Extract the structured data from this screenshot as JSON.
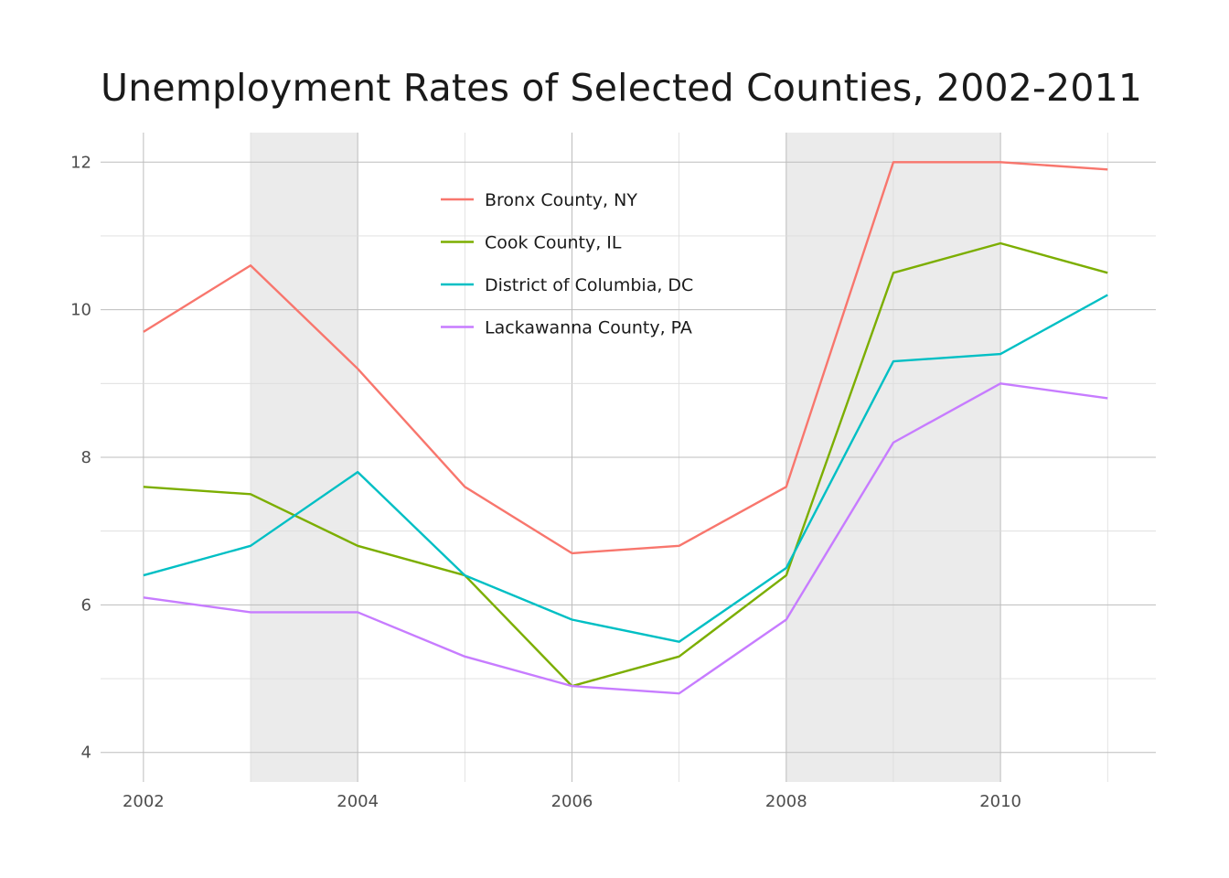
{
  "chart_data": {
    "type": "line",
    "title": "Unemployment Rates of Selected Counties, 2002-2011",
    "xlabel": "",
    "ylabel": "",
    "x": [
      2002,
      2003,
      2004,
      2005,
      2006,
      2007,
      2008,
      2009,
      2010,
      2011
    ],
    "xlim": [
      2001.6,
      2011.45
    ],
    "ylim": [
      3.6,
      12.4
    ],
    "x_ticks": [
      2002,
      2004,
      2006,
      2008,
      2010
    ],
    "y_ticks": [
      4,
      6,
      8,
      10,
      12
    ],
    "grid": true,
    "legend_position": "top-center (inside plot)",
    "shaded_ranges": [
      [
        2003,
        2004
      ],
      [
        2008,
        2010
      ]
    ],
    "shade_color": "#ebebeb",
    "series": [
      {
        "name": "Bronx County, NY",
        "color": "#f8766d",
        "values": [
          9.7,
          10.6,
          9.2,
          7.6,
          6.7,
          6.8,
          7.6,
          12.0,
          12.0,
          11.9
        ]
      },
      {
        "name": "Cook County, IL",
        "color": "#7cae00",
        "values": [
          7.6,
          7.5,
          6.8,
          6.4,
          4.9,
          5.3,
          6.4,
          10.5,
          10.9,
          10.5
        ]
      },
      {
        "name": "District of Columbia, DC",
        "color": "#00bfc4",
        "values": [
          6.4,
          6.8,
          7.8,
          6.4,
          5.8,
          5.5,
          6.5,
          9.3,
          9.4,
          10.2
        ]
      },
      {
        "name": "Lackawanna County, PA",
        "color": "#c77cff",
        "values": [
          6.1,
          5.9,
          5.9,
          5.3,
          4.9,
          4.8,
          5.8,
          8.2,
          9.0,
          8.8
        ]
      }
    ]
  }
}
